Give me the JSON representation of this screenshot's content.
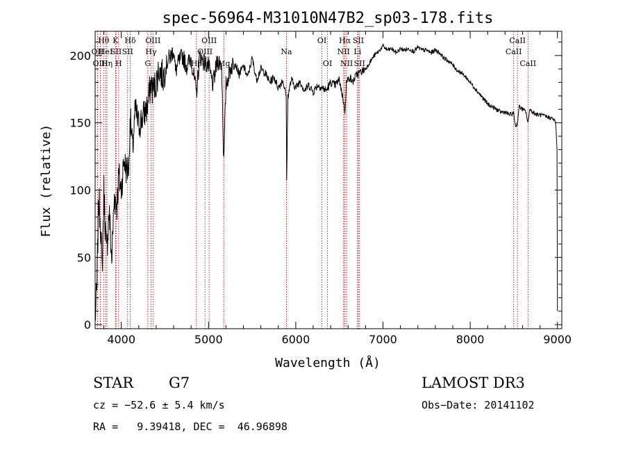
{
  "chart_data": {
    "type": "line",
    "title": "spec-56964-M31010N47B2_sp03-178.fits",
    "xlabel": "Wavelength (Å)",
    "ylabel": "Flux (relative)",
    "xlim": [
      3700,
      9050
    ],
    "ylim": [
      -3,
      218
    ],
    "x_ticks": [
      4000,
      5000,
      6000,
      7000,
      8000,
      9000
    ],
    "x_tick_labels": [
      "4000",
      "5000",
      "6000",
      "7000",
      "8000",
      "9000"
    ],
    "y_ticks": [
      0,
      50,
      100,
      150,
      200
    ],
    "y_tick_labels": [
      "0",
      "50",
      "100",
      "150",
      "200"
    ],
    "series": [
      {
        "name": "spectrum",
        "color": "#000000",
        "x": [
          3700,
          3720,
          3740,
          3760,
          3780,
          3800,
          3830,
          3860,
          3890,
          3920,
          3950,
          3970,
          4000,
          4030,
          4060,
          4090,
          4100,
          4130,
          4160,
          4200,
          4250,
          4300,
          4340,
          4360,
          4400,
          4430,
          4480,
          4530,
          4570,
          4600,
          4620,
          4660,
          4700,
          4750,
          4800,
          4861,
          4900,
          4950,
          5000,
          5050,
          5100,
          5150,
          5175,
          5200,
          5250,
          5300,
          5350,
          5400,
          5450,
          5500,
          5550,
          5600,
          5650,
          5700,
          5750,
          5800,
          5850,
          5890,
          5896,
          5910,
          5950,
          6000,
          6050,
          6100,
          6150,
          6200,
          6250,
          6300,
          6350,
          6400,
          6450,
          6500,
          6550,
          6563,
          6580,
          6620,
          6650,
          6700,
          6750,
          6800,
          6850,
          6900,
          6950,
          7000,
          7050,
          7100,
          7150,
          7200,
          7250,
          7300,
          7350,
          7400,
          7450,
          7500,
          7550,
          7600,
          7650,
          7700,
          7750,
          7800,
          7850,
          7900,
          7950,
          8000,
          8050,
          8100,
          8150,
          8200,
          8250,
          8300,
          8350,
          8400,
          8450,
          8498,
          8520,
          8542,
          8560,
          8600,
          8640,
          8662,
          8680,
          8720,
          8760,
          8800,
          8850,
          8900,
          8950,
          8980,
          8995,
          9000
        ],
        "values": [
          5,
          25,
          92,
          80,
          40,
          100,
          52,
          85,
          48,
          95,
          90,
          110,
          100,
          122,
          115,
          118,
          155,
          130,
          160,
          148,
          155,
          162,
          180,
          174,
          180,
          190,
          184,
          196,
          200,
          205,
          188,
          195,
          200,
          192,
          198,
          172,
          200,
          195,
          192,
          178,
          196,
          194,
          120,
          178,
          190,
          196,
          186,
          192,
          184,
          198,
          182,
          190,
          187,
          180,
          184,
          176,
          182,
          170,
          110,
          170,
          182,
          176,
          181,
          174,
          178,
          173,
          178,
          176,
          174,
          180,
          178,
          182,
          165,
          158,
          180,
          184,
          180,
          186,
          188,
          190,
          195,
          200,
          203,
          207,
          204,
          205,
          202,
          205,
          204,
          205,
          203,
          206,
          204,
          204,
          202,
          204,
          202,
          198,
          196,
          193,
          189,
          187,
          184,
          180,
          176,
          172,
          168,
          164,
          162,
          160,
          158,
          158,
          156,
          157,
          147,
          150,
          162,
          160,
          158,
          149,
          160,
          158,
          156,
          156,
          155,
          154,
          153,
          150,
          130,
          10
        ]
      }
    ],
    "line_markers": [
      {
        "label": "Hθ",
        "x": 3797,
        "row": 1
      },
      {
        "label": "OII",
        "x": 3727,
        "row": 2
      },
      {
        "label": "OIII",
        "x": 3760,
        "row": 3
      },
      {
        "label": "HeI",
        "x": 3820,
        "row": 2
      },
      {
        "label": "Hη",
        "x": 3835,
        "row": 3
      },
      {
        "label": "K",
        "x": 3934,
        "row": 1
      },
      {
        "label": "SII",
        "x": 3940,
        "row": 2
      },
      {
        "label": "H",
        "x": 3969,
        "row": 3
      },
      {
        "label": "Hδ",
        "x": 4102,
        "row": 1
      },
      {
        "label": "SII",
        "x": 4072,
        "row": 2
      },
      {
        "label": "OIII",
        "x": 4363,
        "row": 1
      },
      {
        "label": "Hγ",
        "x": 4341,
        "row": 2
      },
      {
        "label": "G",
        "x": 4304,
        "row": 3
      },
      {
        "label": "Hβ",
        "x": 4861,
        "row": 3
      },
      {
        "label": "OIII",
        "x": 5007,
        "row": 1
      },
      {
        "label": "OIII",
        "x": 4959,
        "row": 2
      },
      {
        "label": "Mg",
        "x": 5175,
        "row": 3
      },
      {
        "label": "Na",
        "x": 5893,
        "row": 2
      },
      {
        "label": "OI",
        "x": 6300,
        "row": 1
      },
      {
        "label": "OI",
        "x": 6364,
        "row": 3
      },
      {
        "label": "Hα",
        "x": 6563,
        "row": 1
      },
      {
        "label": "NII",
        "x": 6548,
        "row": 2
      },
      {
        "label": "NII",
        "x": 6583,
        "row": 3
      },
      {
        "label": "SII",
        "x": 6717,
        "row": 1
      },
      {
        "label": "Li",
        "x": 6708,
        "row": 2
      },
      {
        "label": "SII",
        "x": 6731,
        "row": 3
      },
      {
        "label": "CaII",
        "x": 8542,
        "row": 1
      },
      {
        "label": "CaII",
        "x": 8498,
        "row": 2
      },
      {
        "label": "CaII",
        "x": 8662,
        "row": 3
      }
    ]
  },
  "info": {
    "class_label": "STAR",
    "subclass": "G7",
    "survey": "LAMOST DR3",
    "cz": "cz = −52.6 ± 5.4 km/s",
    "obs_date": "Obs−Date: 20141102",
    "coords": "RA =   9.39418, DEC =  46.96898"
  }
}
